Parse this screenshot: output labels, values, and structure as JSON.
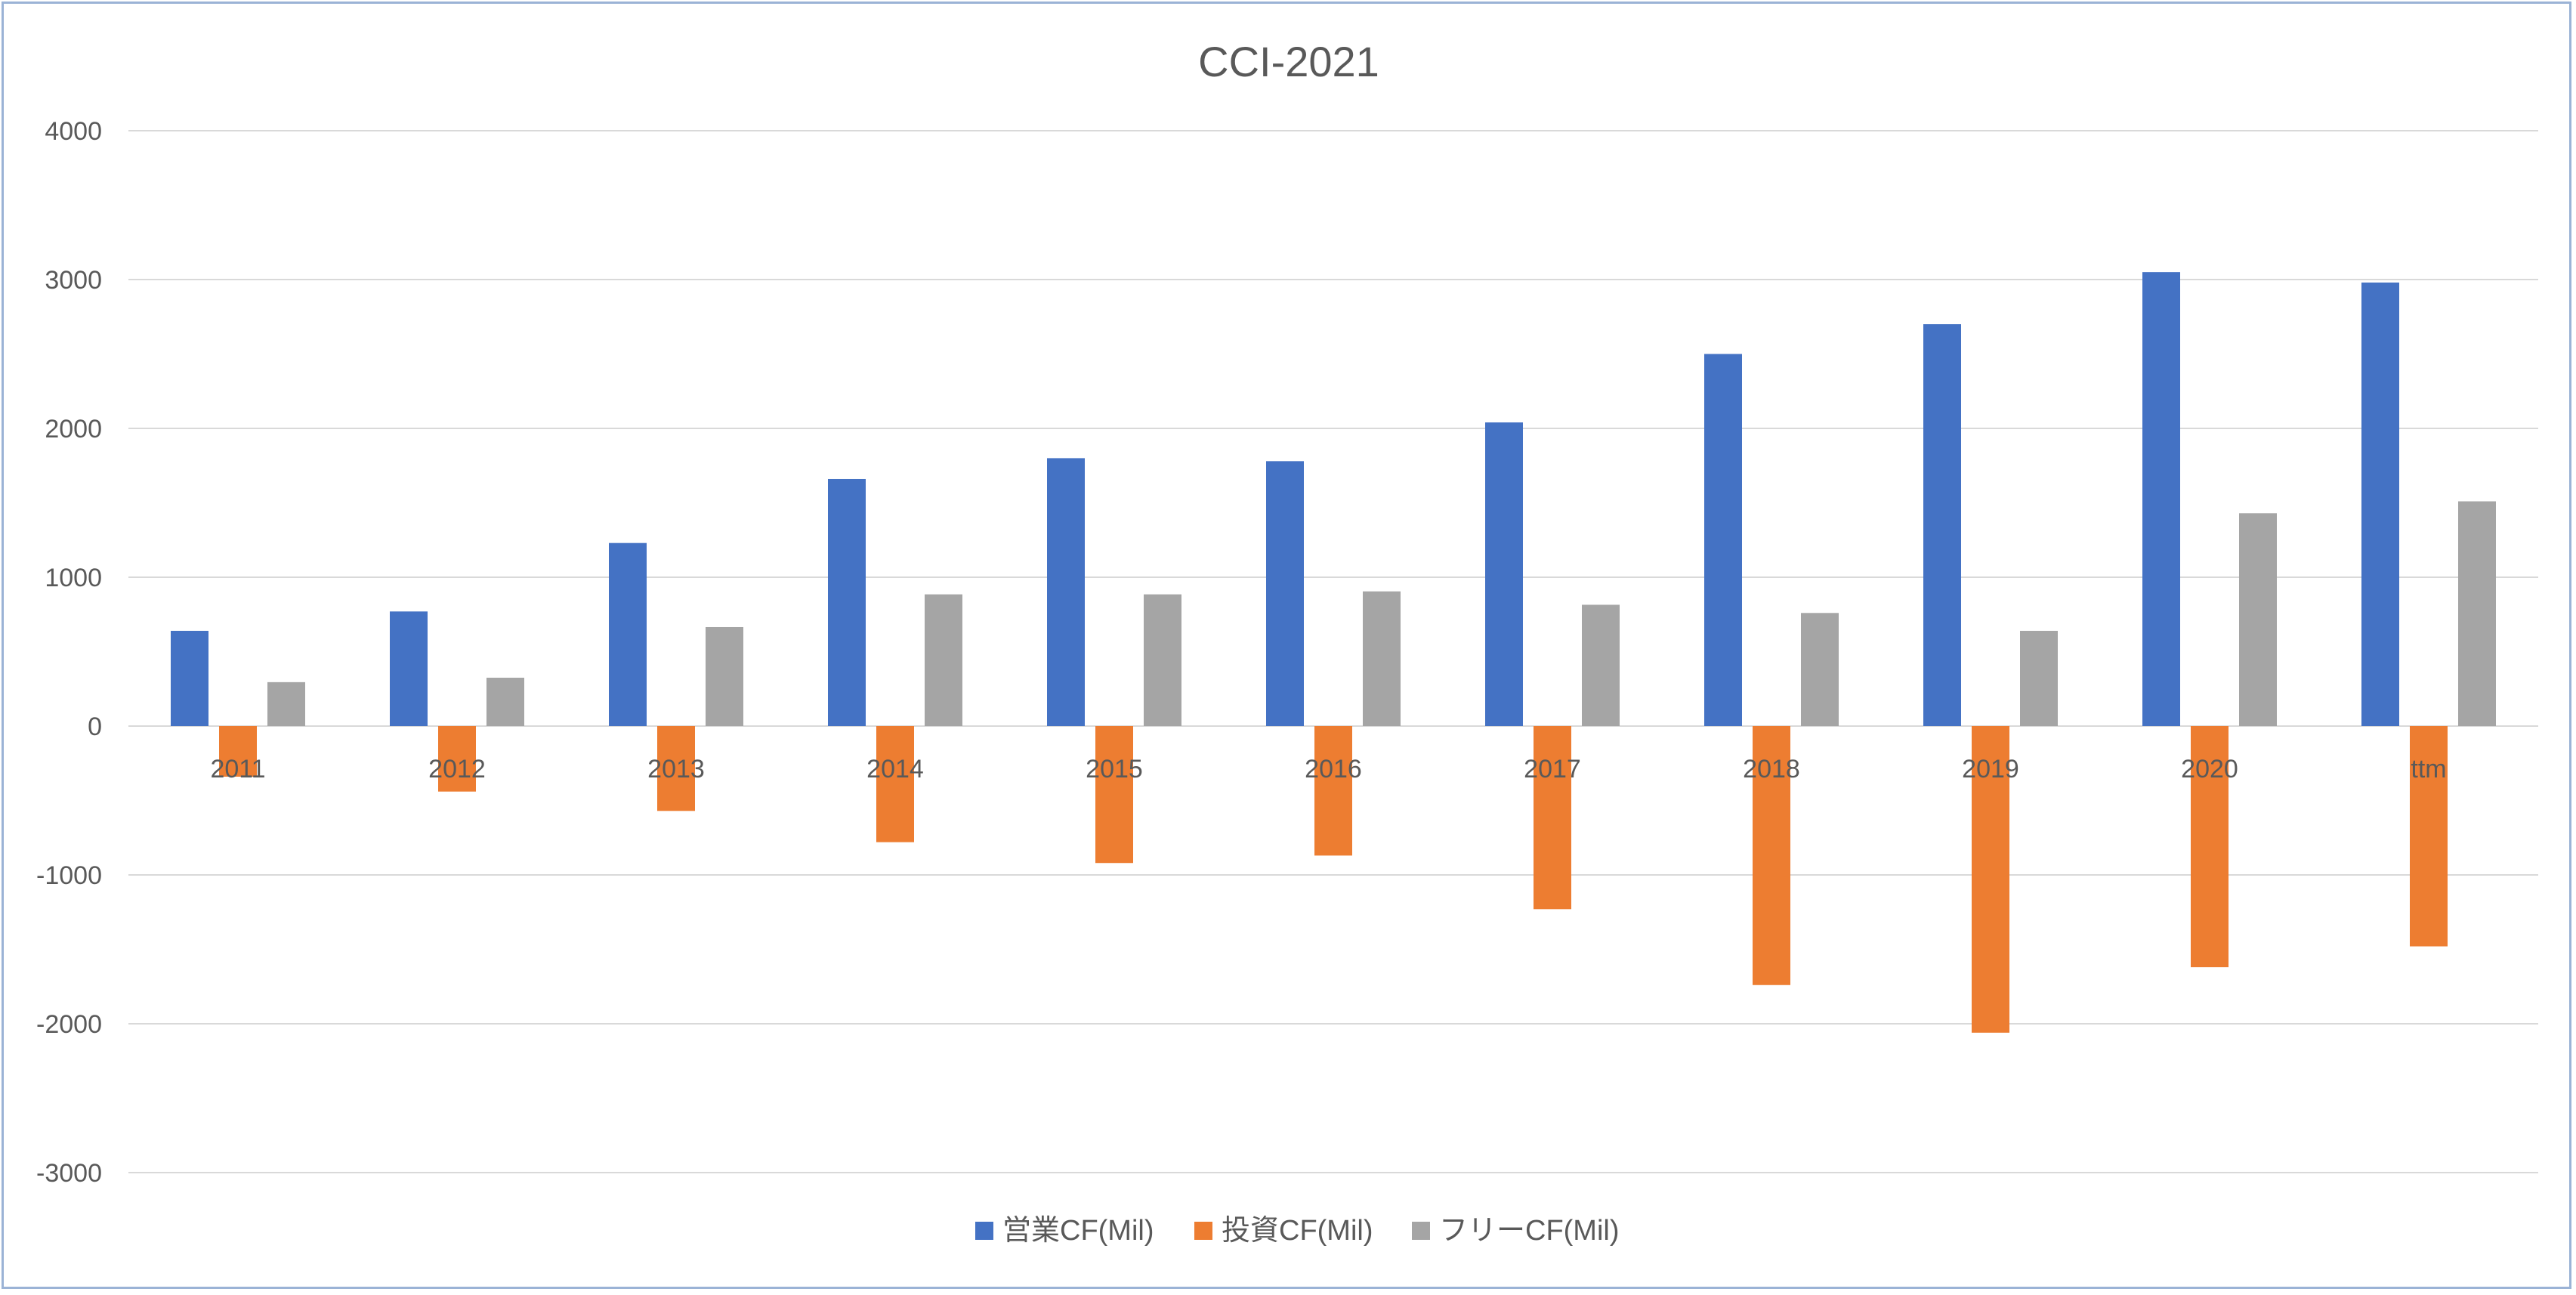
{
  "chart_data": {
    "type": "bar",
    "title": "CCI-2021",
    "xlabel": "",
    "ylabel": "",
    "categories": [
      "2011",
      "2012",
      "2013",
      "2014",
      "2015",
      "2016",
      "2017",
      "2018",
      "2019",
      "2020",
      "ttm"
    ],
    "series": [
      {
        "name": "営業CF(Mil)",
        "color": "#4472C4",
        "values": [
          640,
          770,
          1230,
          1660,
          1800,
          1780,
          2040,
          2500,
          2700,
          3050,
          2980
        ]
      },
      {
        "name": "投資CF(Mil)",
        "color": "#ED7D31",
        "values": [
          -340,
          -440,
          -570,
          -780,
          -920,
          -870,
          -1230,
          -1740,
          -2060,
          -1620,
          -1480
        ]
      },
      {
        "name": "フリーCF(Mil)",
        "color": "#A5A5A5",
        "values": [
          295,
          325,
          665,
          885,
          885,
          905,
          815,
          760,
          640,
          1430,
          1510
        ]
      }
    ],
    "ylim": [
      -3000,
      4000
    ],
    "yticks": [
      4000,
      3000,
      2000,
      1000,
      0,
      -1000,
      -2000,
      -3000
    ],
    "grid": true,
    "legend_position": "bottom"
  },
  "colors": {
    "gridline": "#d9d9d9",
    "text": "#595959",
    "frame_border": "#9bb3d6"
  }
}
